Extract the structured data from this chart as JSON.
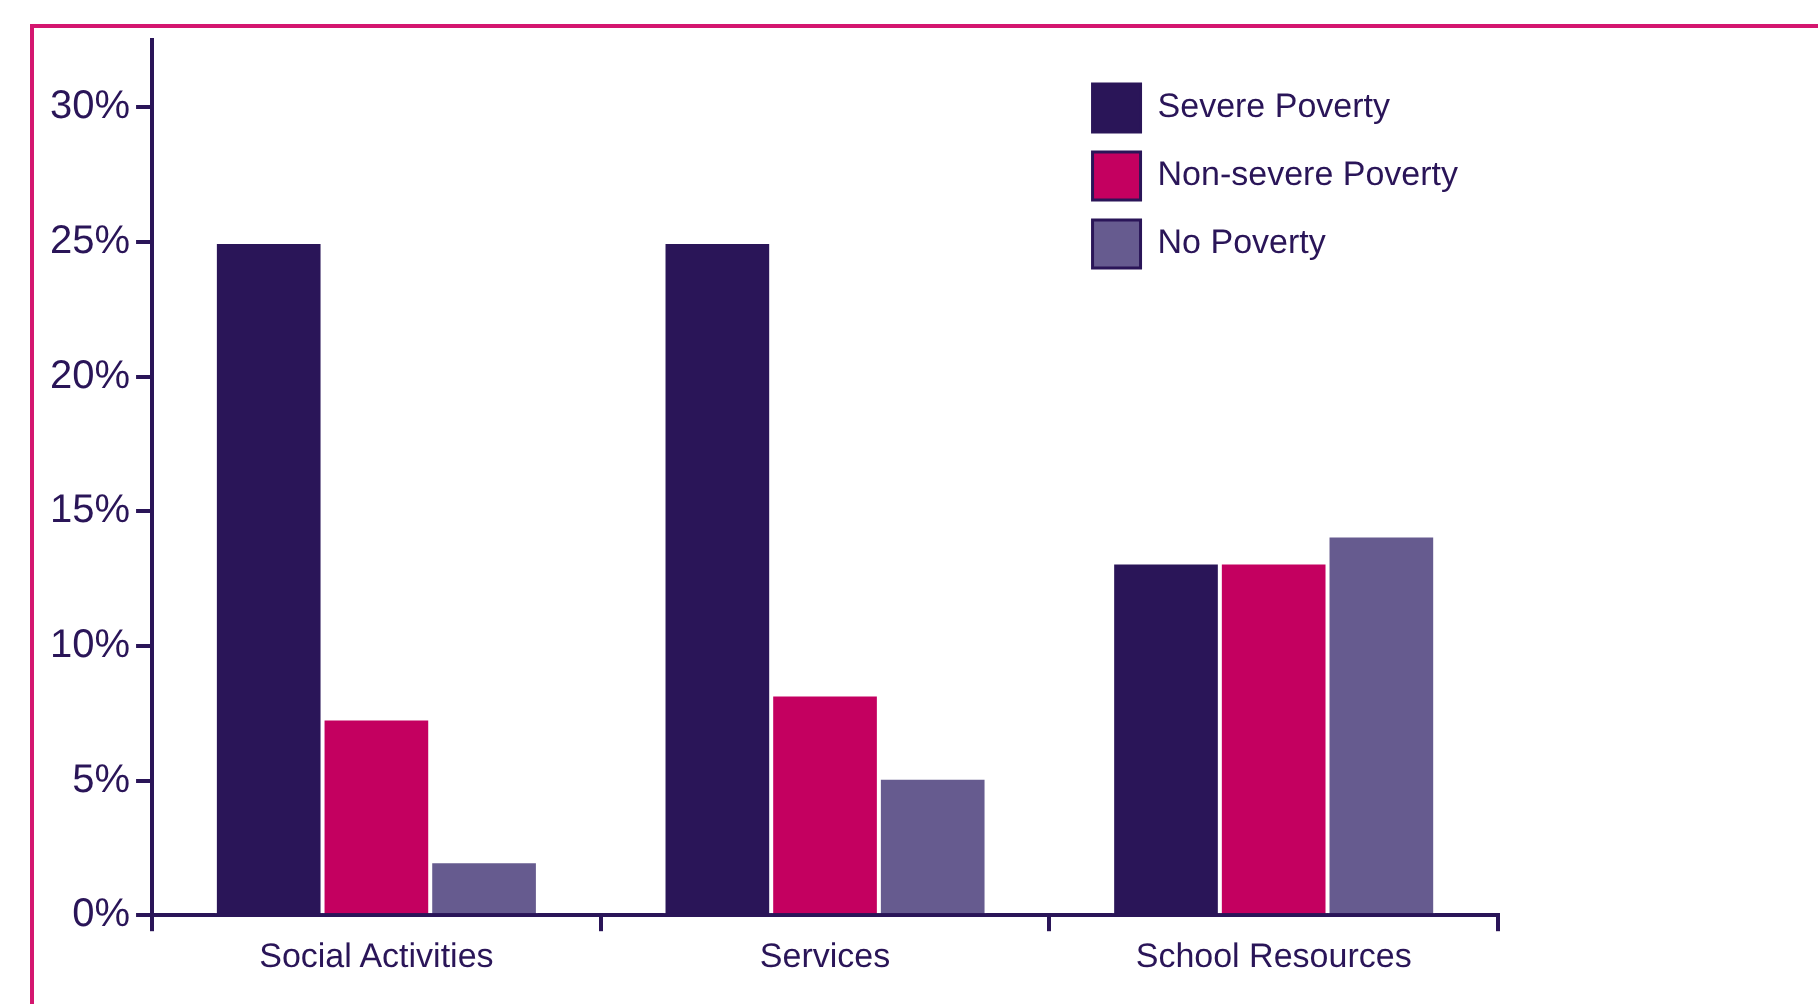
{
  "chart_data": {
    "type": "bar",
    "categories": [
      "Social Activities",
      "Services",
      "School Resources"
    ],
    "series": [
      {
        "name": "Severe Poverty",
        "color": "#2a1558",
        "values": [
          25,
          25,
          13.1
        ]
      },
      {
        "name": "Non-severe Poverty",
        "color": "#c40060",
        "values": [
          7.3,
          8.2,
          13.1
        ]
      },
      {
        "name": "No Poverty",
        "color": "#665b8f",
        "values": [
          2.0,
          5.1,
          14.1
        ]
      }
    ],
    "ylim": [
      0,
      32.5
    ],
    "yticks": [
      {
        "value": 0,
        "label": "0%"
      },
      {
        "value": 5,
        "label": "5%"
      },
      {
        "value": 10,
        "label": "10%"
      },
      {
        "value": 15,
        "label": "15%"
      },
      {
        "value": 20,
        "label": "20%"
      },
      {
        "value": 25,
        "label": "25%"
      },
      {
        "value": 30,
        "label": "30%"
      }
    ],
    "grid": false,
    "legend": "top right"
  }
}
